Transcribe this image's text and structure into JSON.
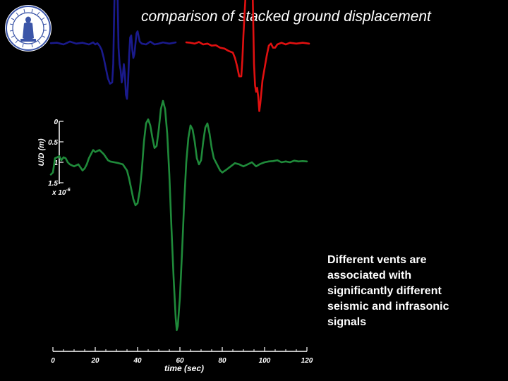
{
  "slide": {
    "title": "comparison of stacked ground displacement",
    "caption_lines": [
      "Different vents are",
      "associated with",
      "significantly different",
      "seismic and infrasonic",
      "signals"
    ]
  },
  "logo": {
    "icon": "university-seal-icon",
    "colors": {
      "ring": "#3b55a8",
      "background": "#ffffff"
    }
  },
  "chart_data": {
    "type": "line",
    "title": "comparison of stacked ground displacement",
    "xlabel": "time (sec)",
    "ylabel": "U/D (m)",
    "y_multiplier": "x 10",
    "y_multiplier_exponent": "-6",
    "xlim": [
      0,
      120
    ],
    "x_ticks": [
      "0",
      "20",
      "40",
      "60",
      "80",
      "100",
      "120"
    ],
    "y_ticks": [
      "0",
      "0.5",
      "1",
      "1.5"
    ],
    "colors": [
      "#1a1a8c",
      "#e01010",
      "#1f8a3a"
    ],
    "series": [
      {
        "points": [
          [
            -1,
            1.91
          ],
          [
            2,
            1.92
          ],
          [
            5,
            1.88
          ],
          [
            8,
            1.95
          ],
          [
            11,
            1.9
          ],
          [
            14,
            1.92
          ],
          [
            17,
            1.88
          ],
          [
            19,
            1.93
          ],
          [
            20,
            1.88
          ],
          [
            21,
            1.91
          ],
          [
            22,
            1.85
          ],
          [
            23,
            1.75
          ],
          [
            24,
            1.55
          ],
          [
            25,
            1.3
          ],
          [
            26,
            1.05
          ],
          [
            27,
            0.92
          ],
          [
            28,
            0.95
          ],
          [
            28.5,
            1.4
          ],
          [
            29,
            2.8
          ],
          [
            29.5,
            4.1
          ],
          [
            30,
            4.3
          ],
          [
            30.5,
            3.2
          ],
          [
            31,
            1.8
          ],
          [
            31.5,
            1.4
          ],
          [
            32,
            1.25
          ],
          [
            32.5,
            0.95
          ],
          [
            33,
            1.1
          ],
          [
            33.5,
            1.4
          ],
          [
            34,
            1.15
          ],
          [
            34.5,
            0.65
          ],
          [
            35,
            0.55
          ],
          [
            35.5,
            0.95
          ],
          [
            36,
            1.6
          ],
          [
            36.5,
            2.05
          ],
          [
            37,
            2.1
          ],
          [
            37.5,
            1.75
          ],
          [
            38,
            1.55
          ],
          [
            38.5,
            1.65
          ],
          [
            39,
            1.9
          ],
          [
            39.5,
            2.15
          ],
          [
            40,
            2.2
          ],
          [
            41,
            1.95
          ],
          [
            42,
            1.9
          ],
          [
            44,
            1.88
          ],
          [
            46,
            1.95
          ],
          [
            48,
            1.88
          ],
          [
            50,
            1.9
          ],
          [
            52,
            1.93
          ],
          [
            55,
            1.9
          ],
          [
            58,
            1.93
          ]
        ]
      },
      {
        "points": [
          [
            63,
            1.93
          ],
          [
            65,
            1.92
          ],
          [
            67,
            1.9
          ],
          [
            69,
            1.94
          ],
          [
            71,
            1.88
          ],
          [
            73,
            1.9
          ],
          [
            75,
            1.85
          ],
          [
            77,
            1.86
          ],
          [
            79,
            1.8
          ],
          [
            81,
            1.78
          ],
          [
            83,
            1.72
          ],
          [
            85,
            1.68
          ],
          [
            86,
            1.55
          ],
          [
            87,
            1.35
          ],
          [
            88,
            1.1
          ],
          [
            89,
            1.1
          ],
          [
            89.5,
            1.5
          ],
          [
            90,
            2.1
          ],
          [
            90.5,
            2.6
          ],
          [
            91,
            3.05
          ],
          [
            91.5,
            3.9
          ],
          [
            92,
            3.55
          ],
          [
            92.5,
            3.1
          ],
          [
            93,
            4.0
          ],
          [
            93.5,
            4.6
          ],
          [
            94,
            4.0
          ],
          [
            94.5,
            2.8
          ],
          [
            95,
            1.4
          ],
          [
            95.5,
            0.88
          ],
          [
            96,
            0.72
          ],
          [
            96.5,
            0.82
          ],
          [
            97,
            0.6
          ],
          [
            97.5,
            0.25
          ],
          [
            98,
            0.45
          ],
          [
            99,
            1.0
          ],
          [
            100,
            1.3
          ],
          [
            101,
            1.6
          ],
          [
            102,
            1.85
          ],
          [
            103,
            1.9
          ],
          [
            104,
            1.8
          ],
          [
            105,
            1.8
          ],
          [
            106,
            1.88
          ],
          [
            108,
            1.92
          ],
          [
            110,
            1.88
          ],
          [
            112,
            1.92
          ],
          [
            115,
            1.9
          ],
          [
            118,
            1.92
          ],
          [
            121,
            1.9
          ]
        ]
      },
      {
        "points": [
          [
            -1,
            -1.3
          ],
          [
            0,
            -1.25
          ],
          [
            1,
            -0.9
          ],
          [
            2,
            -0.88
          ],
          [
            3,
            -0.85
          ],
          [
            4,
            -0.95
          ],
          [
            5,
            -0.88
          ],
          [
            6,
            -0.9
          ],
          [
            7,
            -1.0
          ],
          [
            8,
            -1.05
          ],
          [
            10,
            -1.1
          ],
          [
            12,
            -1.05
          ],
          [
            14,
            -1.2
          ],
          [
            15,
            -1.15
          ],
          [
            16,
            -1.05
          ],
          [
            17,
            -0.9
          ],
          [
            18,
            -0.8
          ],
          [
            19,
            -0.7
          ],
          [
            20,
            -0.75
          ],
          [
            22,
            -0.7
          ],
          [
            24,
            -0.8
          ],
          [
            26,
            -0.95
          ],
          [
            27,
            -0.98
          ],
          [
            29,
            -1.0
          ],
          [
            31,
            -1.02
          ],
          [
            33,
            -1.05
          ],
          [
            35,
            -1.2
          ],
          [
            36,
            -1.4
          ],
          [
            37,
            -1.65
          ],
          [
            38,
            -1.9
          ],
          [
            39,
            -2.05
          ],
          [
            40,
            -2.0
          ],
          [
            41,
            -1.7
          ],
          [
            42,
            -1.2
          ],
          [
            43,
            -0.5
          ],
          [
            44,
            -0.05
          ],
          [
            45,
            0.05
          ],
          [
            46,
            -0.1
          ],
          [
            47,
            -0.4
          ],
          [
            48,
            -0.65
          ],
          [
            49,
            -0.6
          ],
          [
            50,
            -0.2
          ],
          [
            51,
            0.3
          ],
          [
            52,
            0.5
          ],
          [
            53,
            0.3
          ],
          [
            54,
            -0.3
          ],
          [
            55,
            -1.3
          ],
          [
            56,
            -2.6
          ],
          [
            57,
            -3.8
          ],
          [
            58,
            -4.8
          ],
          [
            58.5,
            -5.1
          ],
          [
            59,
            -5.0
          ],
          [
            60,
            -4.3
          ],
          [
            61,
            -3.2
          ],
          [
            62,
            -2.0
          ],
          [
            63,
            -1.0
          ],
          [
            64,
            -0.4
          ],
          [
            65,
            -0.1
          ],
          [
            66,
            -0.2
          ],
          [
            67,
            -0.5
          ],
          [
            68,
            -0.9
          ],
          [
            69,
            -1.05
          ],
          [
            70,
            -0.95
          ],
          [
            71,
            -0.5
          ],
          [
            72,
            -0.15
          ],
          [
            73,
            -0.05
          ],
          [
            74,
            -0.3
          ],
          [
            75,
            -0.65
          ],
          [
            76,
            -0.9
          ],
          [
            77,
            -1.0
          ],
          [
            78,
            -1.1
          ],
          [
            79,
            -1.2
          ],
          [
            80,
            -1.25
          ],
          [
            82,
            -1.18
          ],
          [
            84,
            -1.1
          ],
          [
            86,
            -1.02
          ],
          [
            88,
            -1.05
          ],
          [
            90,
            -1.1
          ],
          [
            92,
            -1.05
          ],
          [
            94,
            -1.0
          ],
          [
            96,
            -1.1
          ],
          [
            98,
            -1.04
          ],
          [
            100,
            -1.0
          ],
          [
            102,
            -0.98
          ],
          [
            104,
            -0.97
          ],
          [
            106,
            -0.95
          ],
          [
            108,
            -1.0
          ],
          [
            110,
            -0.98
          ],
          [
            112,
            -1.0
          ],
          [
            114,
            -0.96
          ],
          [
            116,
            -0.98
          ],
          [
            118,
            -0.97
          ],
          [
            120,
            -0.98
          ]
        ]
      }
    ]
  }
}
